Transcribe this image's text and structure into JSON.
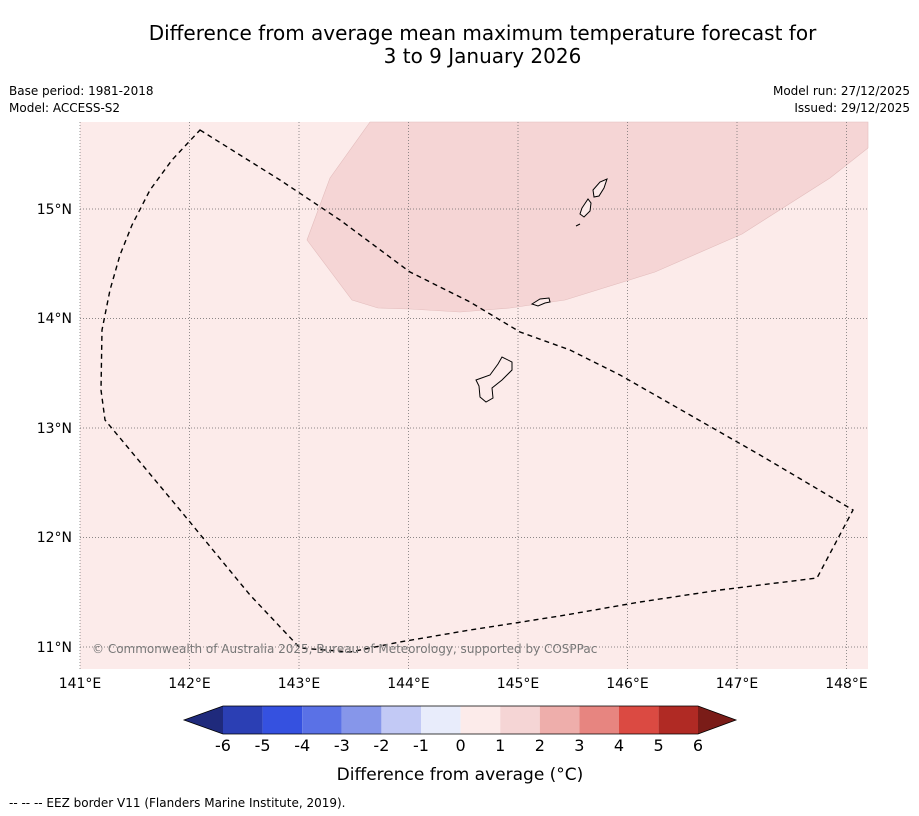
{
  "title": {
    "line1": "Difference from average mean maximum temperature forecast for",
    "line2": "3 to 9 January 2026"
  },
  "meta": {
    "base_period": "Base period: 1981-2018",
    "model": "Model: ACCESS-S2",
    "model_run": "Model run: 27/12/2025",
    "issued": "Issued: 29/12/2025"
  },
  "map": {
    "lon_range": [
      141,
      148.2
    ],
    "lat_range": [
      10.8,
      15.8
    ],
    "lon_ticks": [
      "141°E",
      "142°E",
      "143°E",
      "144°E",
      "145°E",
      "146°E",
      "147°E",
      "148°E"
    ],
    "lat_ticks": [
      "15°N",
      "14°N",
      "13°N",
      "12°N",
      "11°N"
    ],
    "background_anomaly_class": "0 to 1",
    "shaded_area_class": "1 to 2",
    "islands": [
      "Guam",
      "Rota",
      "Tinian",
      "Saipan"
    ],
    "copyright": "© Commonwealth of Australia 2025, Bureau of Meteorology, supported by COSPPac"
  },
  "colorbar": {
    "labels": [
      "-6",
      "-5",
      "-4",
      "-3",
      "-2",
      "-1",
      "0",
      "1",
      "2",
      "3",
      "4",
      "5",
      "6"
    ],
    "colors": [
      "#253494",
      "#2b3fb4",
      "#3551e0",
      "#5a71e6",
      "#8696ea",
      "#c2c9f5",
      "#e8ecfb",
      "#fcebea",
      "#f5d5d5",
      "#eeaeab",
      "#e78580",
      "#db4a42",
      "#b02a24",
      "#7a1c18",
      "#1f2a7c"
    ],
    "title": "Difference from average (°C)"
  },
  "footer": "-- -- -- EEZ border V11 (Flanders Marine Institute, 2019)."
}
